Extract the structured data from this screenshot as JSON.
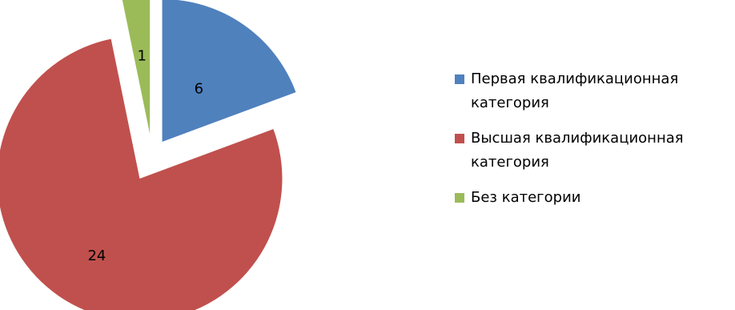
{
  "chart_data": {
    "type": "pie",
    "title": "",
    "exploded": true,
    "legend_position": "right",
    "slices": [
      {
        "name": "Первая квалификационная категория",
        "value": 6,
        "label": "6",
        "color": "#4F81BD"
      },
      {
        "name": "Высшая квалификационная категория",
        "value": 24,
        "label": "24",
        "color": "#C0504D"
      },
      {
        "name": "Без категории",
        "value": 1,
        "label": "1",
        "color": "#9BBB59"
      }
    ]
  }
}
